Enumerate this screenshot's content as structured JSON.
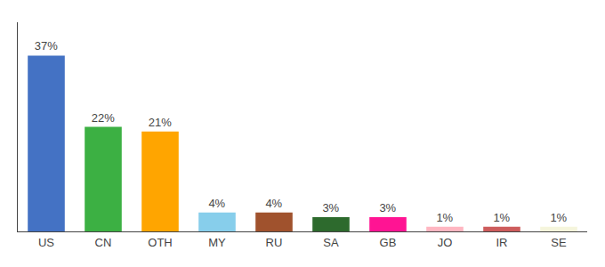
{
  "chart_data": {
    "type": "bar",
    "categories": [
      "US",
      "CN",
      "OTH",
      "MY",
      "RU",
      "SA",
      "GB",
      "JO",
      "IR",
      "SE"
    ],
    "values": [
      37,
      22,
      21,
      4,
      4,
      3,
      3,
      1,
      1,
      1
    ],
    "value_labels": [
      "37%",
      "22%",
      "21%",
      "4%",
      "4%",
      "3%",
      "3%",
      "1%",
      "1%",
      "1%"
    ],
    "colors": [
      "#4472C4",
      "#3CB043",
      "#FFA500",
      "#87CEEB",
      "#A0522D",
      "#2D6A2D",
      "#FF1493",
      "#FFB6C1",
      "#CD5C5C",
      "#F5F5DC"
    ],
    "ylim": [
      0,
      44
    ],
    "data_labels": true,
    "tick_labels": "x",
    "grid": false
  }
}
